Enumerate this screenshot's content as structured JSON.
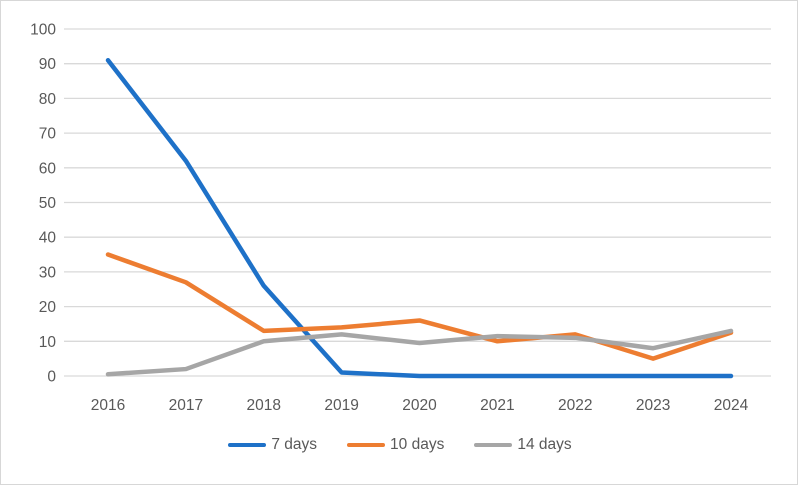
{
  "frame": {
    "background": "#ffffff",
    "border_color": "#d7d7d7"
  },
  "chart_data": {
    "type": "line",
    "title": "",
    "xlabel": "",
    "ylabel": "",
    "categories": [
      "2016",
      "2017",
      "2018",
      "2019",
      "2020",
      "2021",
      "2022",
      "2023",
      "2024"
    ],
    "series": [
      {
        "name": "7 days",
        "color": "#1e71c8",
        "values": [
          91,
          62,
          26,
          1,
          0,
          0,
          0,
          0,
          0
        ]
      },
      {
        "name": "10 days",
        "color": "#ed7d31",
        "values": [
          35,
          27,
          13,
          14,
          16,
          10,
          12,
          5,
          12.5
        ]
      },
      {
        "name": "14 days",
        "color": "#a6a6a6",
        "values": [
          0.5,
          2,
          10,
          12,
          9.5,
          11.5,
          11,
          8,
          13
        ]
      }
    ],
    "ylim": [
      0,
      100
    ],
    "y_ticks": [
      0,
      10,
      20,
      30,
      40,
      50,
      60,
      70,
      80,
      90,
      100
    ],
    "grid": "horizontal",
    "gridline_color": "#d9d9d9",
    "axis_text_color": "#595959",
    "legend_position": "bottom"
  }
}
